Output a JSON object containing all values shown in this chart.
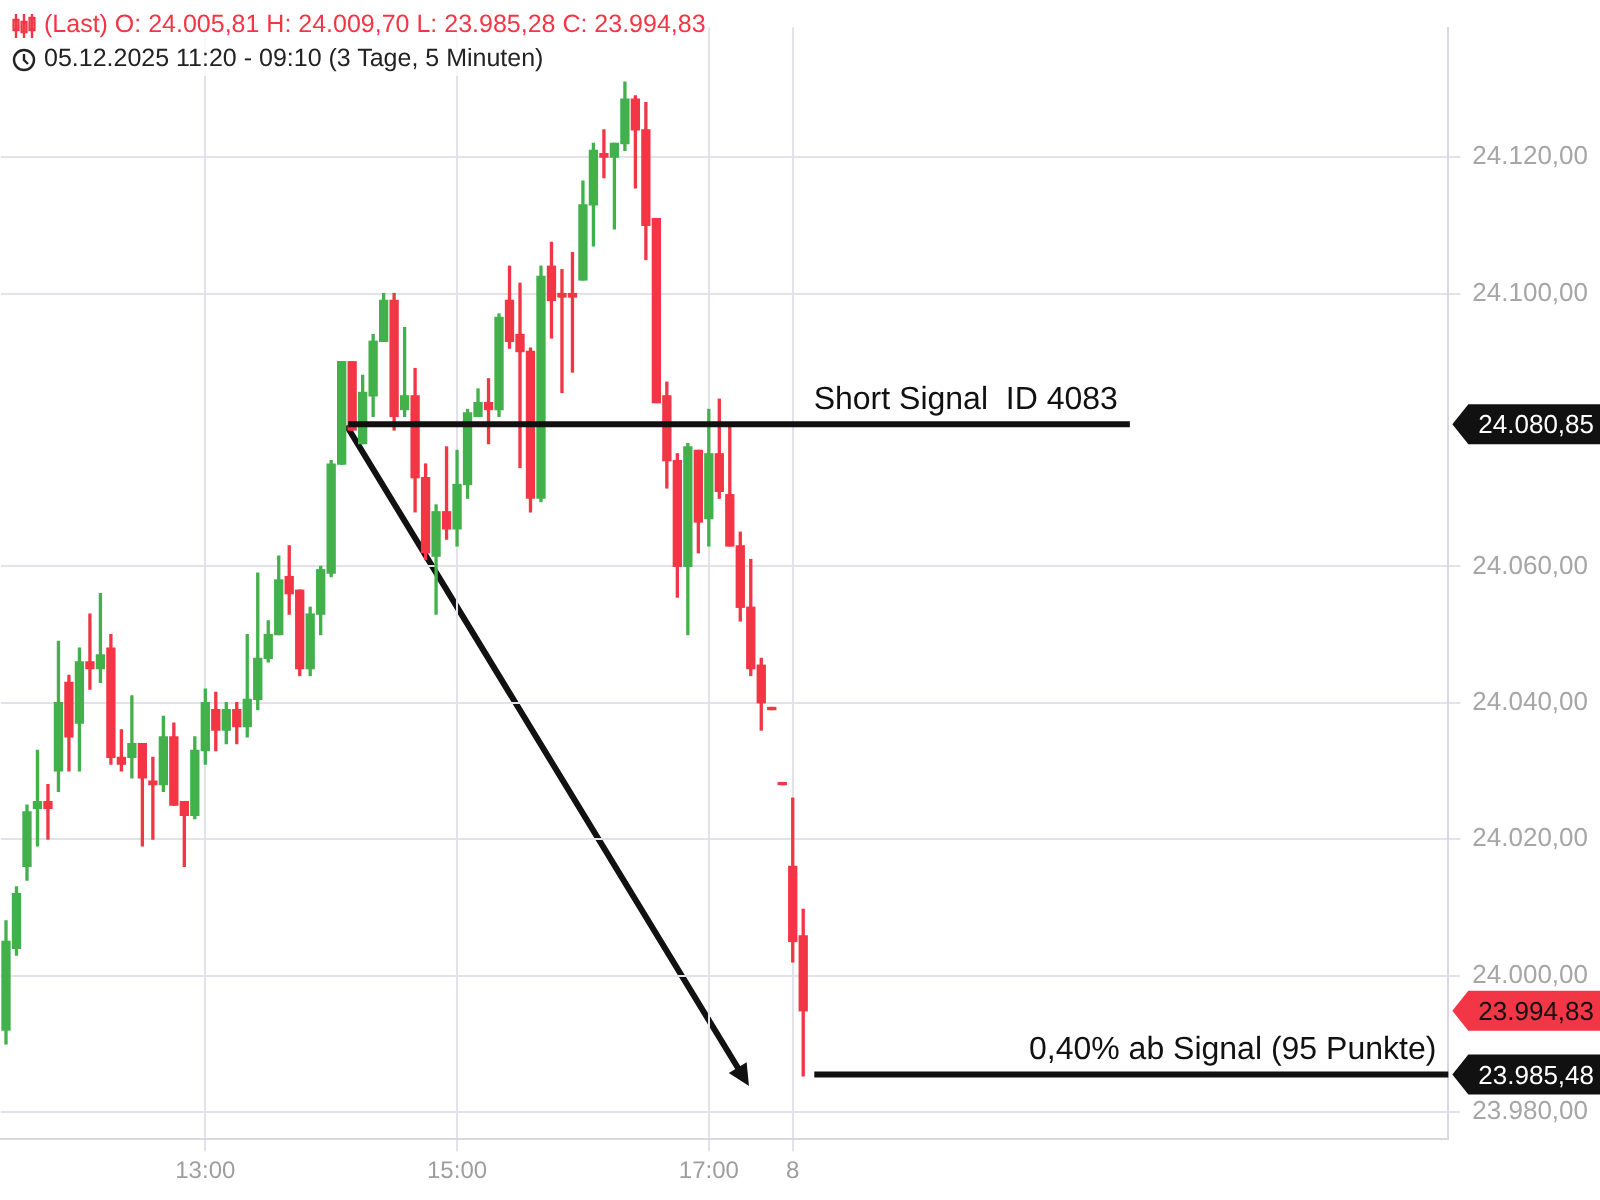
{
  "chart_data": {
    "type": "candlestick",
    "title": "(Last)  O: 24.005,81  H: 24.009,70  L: 23.985,28  C: 23.994,83",
    "subtitle": "05.12.2025 11:20 - 09:10  (3 Tage, 5 Minuten)",
    "categories": [
      null,
      null,
      null,
      null,
      null,
      null,
      null,
      null,
      null,
      null,
      null,
      null,
      null,
      null,
      null,
      null,
      null,
      null,
      null,
      "13:00",
      null,
      null,
      null,
      null,
      null,
      null,
      null,
      null,
      null,
      null,
      null,
      null,
      null,
      null,
      null,
      null,
      null,
      null,
      null,
      null,
      null,
      null,
      null,
      "15:00",
      null,
      null,
      null,
      null,
      null,
      null,
      null,
      null,
      null,
      null,
      null,
      null,
      null,
      null,
      null,
      null,
      null,
      null,
      null,
      null,
      null,
      null,
      null,
      "17:00",
      null,
      null,
      null,
      null,
      null,
      null,
      null,
      "8",
      null,
      null,
      null,
      null,
      null,
      null,
      null,
      null,
      null,
      null,
      null,
      null,
      null,
      null,
      null,
      null,
      null,
      null,
      null,
      null,
      null,
      null,
      null,
      null,
      null,
      null,
      null,
      null,
      null,
      null,
      null,
      null,
      null,
      null,
      null,
      null,
      null,
      null,
      null,
      null,
      null,
      null,
      null,
      null,
      null,
      null,
      null,
      null,
      null,
      null,
      null,
      null,
      null,
      null,
      null,
      null,
      null,
      null,
      null,
      null,
      null,
      null
    ],
    "ohlc": [
      [
        23992,
        24008,
        23990,
        24005
      ],
      [
        24004,
        24013,
        24003,
        24012
      ],
      [
        24016,
        24025,
        24014,
        24024
      ],
      [
        24024.5,
        24033,
        24019,
        24025.5
      ],
      [
        24025.5,
        24028,
        24020,
        24024.5
      ],
      [
        24030,
        24049,
        24027,
        24040
      ],
      [
        24043,
        24044,
        24030,
        24035
      ],
      [
        24037,
        24048,
        24030,
        24046
      ],
      [
        24046,
        24053,
        24042,
        24045
      ],
      [
        24045,
        24056,
        24043,
        24047
      ],
      [
        24048,
        24050,
        24031,
        24032
      ],
      [
        24032,
        24036,
        24030,
        24031
      ],
      [
        24032,
        24041,
        24029,
        24034
      ],
      [
        24034,
        24034,
        24019,
        24029
      ],
      [
        24028.5,
        24032,
        24020,
        24028
      ],
      [
        24028,
        24038,
        24027,
        24035
      ],
      [
        24035,
        24037,
        24025,
        24025
      ],
      [
        24025.5,
        24025.5,
        24016,
        24023.5
      ],
      [
        24023.5,
        24035,
        24023,
        24033
      ],
      [
        24033,
        24042,
        24031,
        24040
      ],
      [
        24039,
        24041.5,
        24033,
        24036
      ],
      [
        24036,
        24040,
        24034,
        24039
      ],
      [
        24039,
        24040,
        24034,
        24036.5
      ],
      [
        24036.5,
        24050,
        24035,
        24040.5
      ],
      [
        24040.5,
        24059,
        24039,
        24046.5
      ],
      [
        24046.5,
        24052,
        24046,
        24050
      ],
      [
        24050,
        24061.5,
        24050,
        24058
      ],
      [
        24058.5,
        24063,
        24053,
        24056
      ],
      [
        24056.5,
        24056.5,
        24044,
        24045
      ],
      [
        24045,
        24054,
        24044,
        24053
      ],
      [
        24053,
        24060,
        24050,
        24059.5
      ],
      [
        24059,
        24075.5,
        24058.5,
        24075
      ],
      [
        24075,
        24090,
        24075,
        24090
      ],
      [
        24090,
        24090,
        24080,
        24080
      ],
      [
        24078,
        24088,
        24078,
        24085.5
      ],
      [
        24085,
        24094,
        24082,
        24093
      ],
      [
        24093,
        24100,
        24093,
        24099
      ],
      [
        24099,
        24100,
        24080,
        24082
      ],
      [
        24083,
        24095,
        24082,
        24085
      ],
      [
        24085,
        24089,
        24068,
        24073
      ],
      [
        24073,
        24075,
        24061,
        24062
      ],
      [
        24061.5,
        24069,
        24053,
        24068
      ],
      [
        24068,
        24077.5,
        24064,
        24065.5
      ],
      [
        24065.5,
        24077,
        24063,
        24072
      ],
      [
        24072,
        24083,
        24070,
        24082.5
      ],
      [
        24082,
        24086,
        24082,
        24084
      ],
      [
        24084,
        24087.5,
        24078,
        24083
      ],
      [
        24083,
        24097,
        24082,
        24096.5
      ],
      [
        24099,
        24104,
        24092,
        24093
      ],
      [
        24094,
        24101.5,
        24074.5,
        24091.5
      ],
      [
        24091.5,
        24092,
        24068,
        24070
      ],
      [
        24070,
        24104,
        24069.5,
        24102.5
      ],
      [
        24104,
        24107.5,
        24093.5,
        24099
      ],
      [
        24100,
        24103.5,
        24085.5,
        24099.5
      ],
      [
        24100,
        24106,
        24088.5,
        24099.5
      ],
      [
        24102,
        24116.5,
        24102,
        24113
      ],
      [
        24113,
        24122,
        24107,
        24121
      ],
      [
        24120.5,
        24124,
        24117,
        24120
      ],
      [
        24120,
        24122,
        24109.5,
        24122
      ],
      [
        24122,
        24131,
        24121,
        24128.5
      ],
      [
        24128.5,
        24129,
        24115.5,
        24124
      ],
      [
        24124,
        24128,
        24105,
        24110
      ],
      [
        24111,
        24111,
        24084,
        24084
      ],
      [
        24085,
        24087,
        24071.5,
        24075.5
      ],
      [
        24075.5,
        24076.5,
        24055.5,
        24060
      ],
      [
        24060,
        24078,
        24050,
        24077.5
      ],
      [
        24077,
        24077,
        24062,
        24066.5
      ],
      [
        24067,
        24083,
        24063,
        24076.5
      ],
      [
        24076.5,
        24084.5,
        24070,
        24071
      ],
      [
        24070.5,
        24081,
        24063,
        24063
      ],
      [
        24063,
        24065,
        24052,
        24054
      ],
      [
        24054,
        24061,
        24044,
        24045
      ],
      [
        24045.5,
        24046.5,
        24036,
        24040
      ],
      [
        24039.3,
        24039.3,
        24039,
        24039
      ],
      [
        24028.2,
        24028.2,
        24028,
        24028
      ],
      [
        24016,
        24026,
        24002,
        24005
      ],
      [
        24005.81,
        24009.7,
        23985.28,
        23994.83
      ],
      null,
      null,
      null,
      null,
      null,
      null,
      null,
      null,
      null,
      null,
      null,
      null,
      null,
      null,
      null,
      null,
      null,
      null,
      null,
      null,
      null,
      null,
      null,
      null,
      null,
      null,
      null,
      null,
      null,
      null,
      null,
      null,
      null,
      null,
      null,
      null,
      null,
      null,
      null,
      null,
      null,
      null,
      null,
      null,
      null,
      null,
      null,
      null,
      null,
      null,
      null,
      null,
      null,
      null,
      null,
      null,
      null,
      null,
      null,
      null,
      null
    ],
    "colors": [
      "#43b14b",
      "#43b14b",
      "#43b14b",
      "#43b14b",
      "#f23645",
      "#43b14b",
      "#f23645",
      "#43b14b",
      "#f23645",
      "#43b14b",
      "#f23645",
      "#f23645",
      "#43b14b",
      "#f23645",
      "#f23645",
      "#43b14b",
      "#f23645",
      "#f23645",
      "#43b14b",
      "#43b14b",
      "#f23645",
      "#43b14b",
      "#f23645",
      "#43b14b",
      "#43b14b",
      "#43b14b",
      "#43b14b",
      "#f23645",
      "#f23645",
      "#43b14b",
      "#43b14b",
      "#43b14b",
      "#43b14b",
      "#f23645",
      "#43b14b",
      "#43b14b",
      "#43b14b",
      "#f23645",
      "#43b14b",
      "#f23645",
      "#f23645",
      "#43b14b",
      "#f23645",
      "#43b14b",
      "#43b14b",
      "#43b14b",
      "#f23645",
      "#43b14b",
      "#f23645",
      "#f23645",
      "#f23645",
      "#43b14b",
      "#f23645",
      "#f23645",
      "#f23645",
      "#43b14b",
      "#43b14b",
      "#f23645",
      "#43b14b",
      "#43b14b",
      "#f23645",
      "#f23645",
      "#f23645",
      "#f23645",
      "#f23645",
      "#43b14b",
      "#f23645",
      "#43b14b",
      "#f23645",
      "#f23645",
      "#f23645",
      "#f23645",
      "#f23645",
      "#f23645",
      "#f23645",
      "#f23645",
      "#f23645",
      null,
      null,
      null,
      null,
      null,
      null,
      null,
      null,
      null,
      null,
      null,
      null,
      null,
      null,
      null,
      null,
      null,
      null,
      null,
      null,
      null,
      null,
      null,
      null,
      null,
      null,
      null,
      null,
      null,
      null,
      null,
      null,
      null,
      null,
      null,
      null,
      null,
      null,
      null,
      null,
      null,
      null,
      null,
      null,
      null,
      null,
      null,
      null,
      null,
      null,
      null,
      null,
      null,
      null,
      null,
      null,
      null,
      null,
      null,
      null,
      null
    ],
    "ylim": [
      23976,
      24139
    ],
    "yticks": [
      {
        "value": 23980,
        "label": "23.980,00"
      },
      {
        "value": 24000,
        "label": "24.000,00"
      },
      {
        "value": 24020,
        "label": "24.020,00"
      },
      {
        "value": 24040,
        "label": "24.040,00"
      },
      {
        "value": 24060,
        "label": "24.060,00"
      },
      {
        "value": 24100,
        "label": "24.100,00"
      },
      {
        "value": 24120,
        "label": "24.120,00"
      }
    ],
    "y2lim": [
      23976,
      24139
    ],
    "y2ticks": [
      {
        "value": 23985.48,
        "label": "23.985,48"
      },
      {
        "value": 23994.83,
        "label": "23.994,83"
      },
      {
        "value": 24080.85,
        "label": "24.080,85"
      }
    ],
    "ref_lines": [
      {
        "axis": "y",
        "value": 24080.85,
        "label": "Short Signal  ID 4083",
        "color": "#111111"
      },
      {
        "axis": "y",
        "value": 23985.48,
        "label": "0,40% ab Signal (95 Punkte)",
        "color": "#111111"
      }
    ],
    "grid": true,
    "legend": false
  }
}
